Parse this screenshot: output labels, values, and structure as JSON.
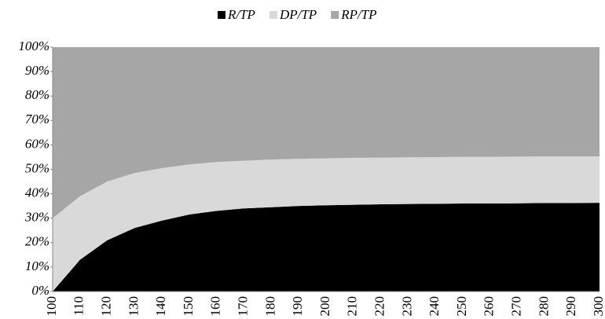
{
  "chart_data": {
    "type": "stacked_area_100",
    "categories": [
      100,
      110,
      120,
      130,
      140,
      150,
      160,
      170,
      180,
      190,
      200,
      210,
      220,
      230,
      240,
      250,
      260,
      270,
      280,
      290,
      300
    ],
    "series": [
      {
        "name": "R/TP",
        "color": "#000000",
        "values": [
          0,
          13,
          21,
          26,
          29,
          31.5,
          33,
          34,
          34.5,
          35,
          35.3,
          35.5,
          35.7,
          35.8,
          35.9,
          36,
          36,
          36.1,
          36.2,
          36.2,
          36.3
        ]
      },
      {
        "name": "DP/TP",
        "color": "#d9d9d9",
        "values": [
          30,
          26,
          24,
          22.5,
          21.5,
          20.5,
          20,
          19.5,
          19.5,
          19.3,
          19.2,
          19.2,
          19.1,
          19.1,
          19.1,
          19.1,
          19.1,
          19.1,
          19.1,
          19.1,
          19
        ]
      },
      {
        "name": "RP/TP",
        "color": "#a6a6a6",
        "values": [
          70,
          61,
          55,
          51.5,
          49.5,
          48,
          47,
          46.5,
          46,
          45.7,
          45.5,
          45.3,
          45.2,
          45.1,
          45,
          44.9,
          44.9,
          44.8,
          44.7,
          44.7,
          44.7
        ]
      }
    ],
    "ylim": [
      0,
      100
    ],
    "yticks": [
      {
        "value": 0,
        "label": "0%"
      },
      {
        "value": 10,
        "label": "10%"
      },
      {
        "value": 20,
        "label": "20%"
      },
      {
        "value": 30,
        "label": "30%"
      },
      {
        "value": 40,
        "label": "40%"
      },
      {
        "value": 50,
        "label": "50%"
      },
      {
        "value": 60,
        "label": "60%"
      },
      {
        "value": 70,
        "label": "70%"
      },
      {
        "value": 80,
        "label": "80%"
      },
      {
        "value": 90,
        "label": "90%"
      },
      {
        "value": 100,
        "label": "100%"
      }
    ],
    "legend": "top"
  }
}
